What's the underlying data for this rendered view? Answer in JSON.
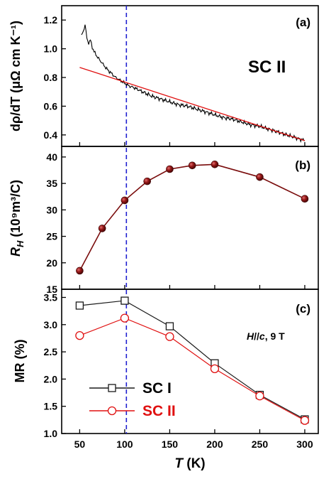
{
  "colors": {
    "axis": "#000000",
    "black_line": "#000000",
    "red_line": "#e01010",
    "dark_red": "#7a0c0c",
    "dashed_line": "#2020d0",
    "sc1": "#1a1a1a",
    "sc2": "#e01010"
  },
  "chart_data": [
    {
      "id": "a",
      "type": "line",
      "panel_label": "(a)",
      "annotation": "SC II",
      "ylabel": "dρ/dT (μΩ cm K⁻¹)",
      "ylim": [
        0.32,
        1.3
      ],
      "yticks": [
        "0.4",
        "0.6",
        "0.8",
        "1.0",
        "1.2"
      ],
      "series": [
        {
          "style": "noisy-black",
          "x": [
            52,
            54,
            56,
            58,
            60,
            62,
            64,
            66,
            70,
            75,
            80,
            85,
            90,
            95,
            100,
            105,
            110,
            120,
            130,
            140,
            150,
            160,
            170,
            180,
            190,
            200,
            210,
            220,
            230,
            240,
            250,
            260,
            270,
            280,
            290,
            300
          ],
          "y": [
            1.09,
            1.12,
            1.17,
            1.07,
            1.04,
            1.06,
            1.01,
            0.98,
            0.94,
            0.9,
            0.86,
            0.83,
            0.8,
            0.78,
            0.76,
            0.74,
            0.73,
            0.7,
            0.67,
            0.65,
            0.63,
            0.61,
            0.6,
            0.58,
            0.56,
            0.54,
            0.52,
            0.51,
            0.49,
            0.47,
            0.46,
            0.44,
            0.42,
            0.4,
            0.38,
            0.36
          ]
        },
        {
          "style": "red-fit",
          "x": [
            50,
            300
          ],
          "y": [
            0.87,
            0.36
          ]
        }
      ]
    },
    {
      "id": "b",
      "type": "line",
      "panel_label": "(b)",
      "ylabel_var": "R",
      "ylabel_sub": "H",
      "ylabel_rest": " (10⁹m³/C)",
      "ylim": [
        15,
        42
      ],
      "yticks": [
        "15",
        "20",
        "25",
        "30",
        "35",
        "40"
      ],
      "series": [
        {
          "style": "dark-red-dots",
          "x": [
            50,
            75,
            100,
            125,
            150,
            175,
            200,
            250,
            300
          ],
          "y": [
            18.5,
            26.5,
            31.8,
            35.4,
            37.7,
            38.4,
            38.6,
            36.2,
            32.1
          ]
        }
      ]
    },
    {
      "id": "c",
      "type": "line",
      "panel_label": "(c)",
      "ylabel": "MR (%)",
      "xlabel_var": "T",
      "xlabel_rest": " (K)",
      "annotation_h": "H",
      "annotation_c": "c",
      "annotation_rest": ", 9 T",
      "xlim": [
        30,
        315
      ],
      "xticks": [
        "50",
        "100",
        "150",
        "200",
        "250",
        "300"
      ],
      "ylim": [
        1.0,
        3.65
      ],
      "yticks": [
        "1.0",
        "1.5",
        "2.0",
        "2.5",
        "3.0",
        "3.5"
      ],
      "series": [
        {
          "name": "SC I",
          "marker": "square",
          "x": [
            50,
            100,
            150,
            200,
            250,
            300
          ],
          "y": [
            3.35,
            3.44,
            2.97,
            2.29,
            1.71,
            1.26
          ]
        },
        {
          "name": "SC II",
          "marker": "circle",
          "x": [
            50,
            100,
            150,
            200,
            250,
            300
          ],
          "y": [
            2.8,
            3.12,
            2.78,
            2.19,
            1.69,
            1.24
          ]
        }
      ]
    }
  ]
}
